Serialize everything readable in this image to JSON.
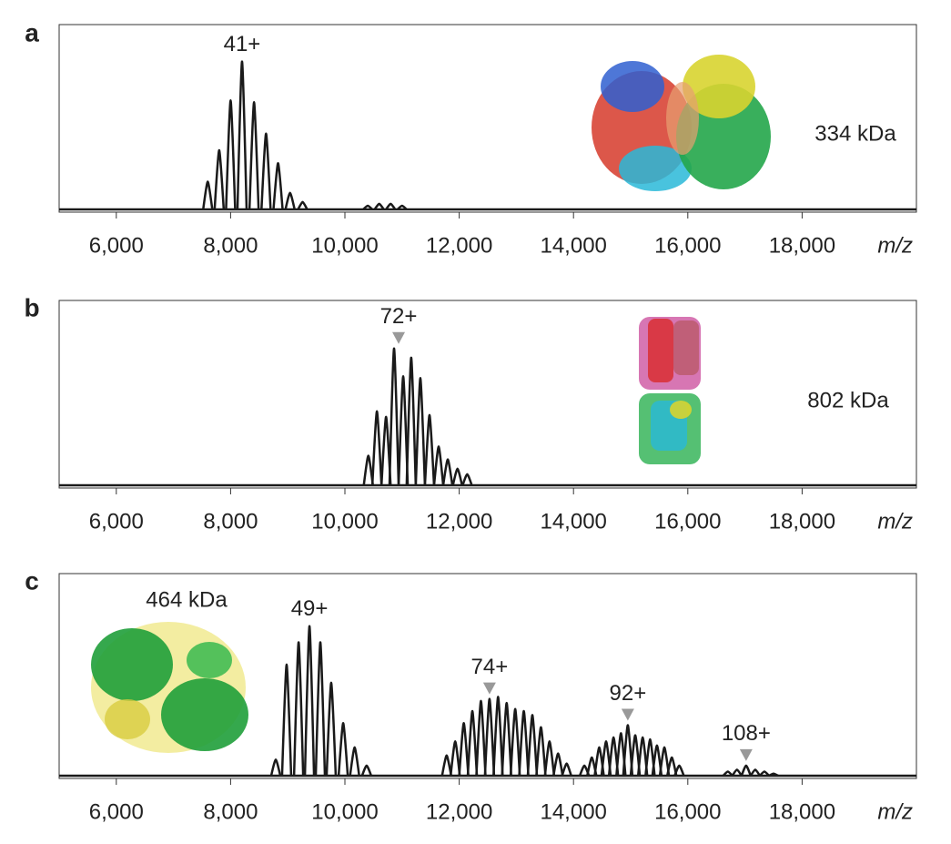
{
  "chart_data": [
    {
      "type": "spectrum",
      "panel": "a",
      "label": "334 kDa",
      "xlabel": "m/z",
      "xlim": [
        5000,
        20000
      ],
      "ylim": [
        0,
        100
      ],
      "xticks": [
        {
          "value": 6000,
          "label": "6,000"
        },
        {
          "value": 8000,
          "label": "8,000"
        },
        {
          "value": 10000,
          "label": "10,000"
        },
        {
          "value": 12000,
          "label": "12,000"
        },
        {
          "value": 14000,
          "label": "14,000"
        },
        {
          "value": 16000,
          "label": "16,000"
        },
        {
          "value": 18000,
          "label": "18,000"
        }
      ],
      "color": "#1a1a1a",
      "x": [
        7600,
        7800,
        8000,
        8200,
        8410,
        8620,
        8830,
        9040,
        9260,
        10400,
        10600,
        10800,
        11000
      ],
      "values": [
        15,
        32,
        59,
        80,
        58,
        41,
        25,
        9,
        4,
        2,
        3,
        3,
        2
      ],
      "annotations": [
        {
          "text": "41+",
          "x": 8200,
          "arrow": false
        }
      ]
    },
    {
      "type": "spectrum",
      "panel": "b",
      "label": "802 kDa",
      "xlabel": "m/z",
      "xlim": [
        5000,
        20000
      ],
      "ylim": [
        0,
        100
      ],
      "xticks": [
        {
          "value": 6000,
          "label": "6,000"
        },
        {
          "value": 8000,
          "label": "8,000"
        },
        {
          "value": 10000,
          "label": "10,000"
        },
        {
          "value": 12000,
          "label": "12,000"
        },
        {
          "value": 14000,
          "label": "14,000"
        },
        {
          "value": 16000,
          "label": "16,000"
        },
        {
          "value": 18000,
          "label": "18,000"
        }
      ],
      "color": "#1a1a1a",
      "x": [
        10410,
        10560,
        10720,
        10860,
        11020,
        11160,
        11320,
        11480,
        11640,
        11800,
        11970,
        12140
      ],
      "values": [
        16,
        40,
        37,
        74,
        59,
        69,
        58,
        38,
        21,
        14,
        9,
        6
      ],
      "annotations": [
        {
          "text": "72+",
          "x": 10940,
          "arrow": true
        }
      ]
    },
    {
      "type": "spectrum",
      "panel": "c",
      "label": "464 kDa",
      "xlabel": "m/z",
      "xlim": [
        5000,
        20000
      ],
      "ylim": [
        0,
        100
      ],
      "xticks": [
        {
          "value": 6000,
          "label": "6,000"
        },
        {
          "value": 8000,
          "label": "8,000"
        },
        {
          "value": 10000,
          "label": "10,000"
        },
        {
          "value": 12000,
          "label": "12,000"
        },
        {
          "value": 14000,
          "label": "14,000"
        },
        {
          "value": 16000,
          "label": "16,000"
        },
        {
          "value": 18000,
          "label": "18,000"
        }
      ],
      "color": "#1a1a1a",
      "x": [
        8790,
        8980,
        9190,
        9380,
        9570,
        9760,
        9970,
        10170,
        10380,
        11780,
        11930,
        12080,
        12230,
        12380,
        12530,
        12680,
        12830,
        12980,
        13130,
        13280,
        13430,
        13580,
        13730,
        13880,
        14190,
        14320,
        14450,
        14570,
        14700,
        14830,
        14950,
        15080,
        15210,
        15340,
        15460,
        15590,
        15720,
        15850,
        16700,
        16860,
        17020,
        17180,
        17340,
        17500
      ],
      "values": [
        8,
        55,
        66,
        74,
        66,
        46,
        26,
        14,
        5,
        10,
        17,
        26,
        32,
        37,
        38,
        39,
        36,
        33,
        32,
        30,
        24,
        17,
        11,
        6,
        5,
        9,
        14,
        17,
        19,
        21,
        25,
        20,
        19,
        18,
        15,
        14,
        9,
        5,
        2,
        3,
        5,
        3,
        2,
        1
      ],
      "annotations": [
        {
          "text": "49+",
          "x": 9380,
          "arrow": false
        },
        {
          "text": "74+",
          "x": 12530,
          "arrow": true
        },
        {
          "text": "92+",
          "x": 14950,
          "arrow": true
        },
        {
          "text": "108+",
          "x": 17020,
          "arrow": true
        }
      ]
    }
  ]
}
